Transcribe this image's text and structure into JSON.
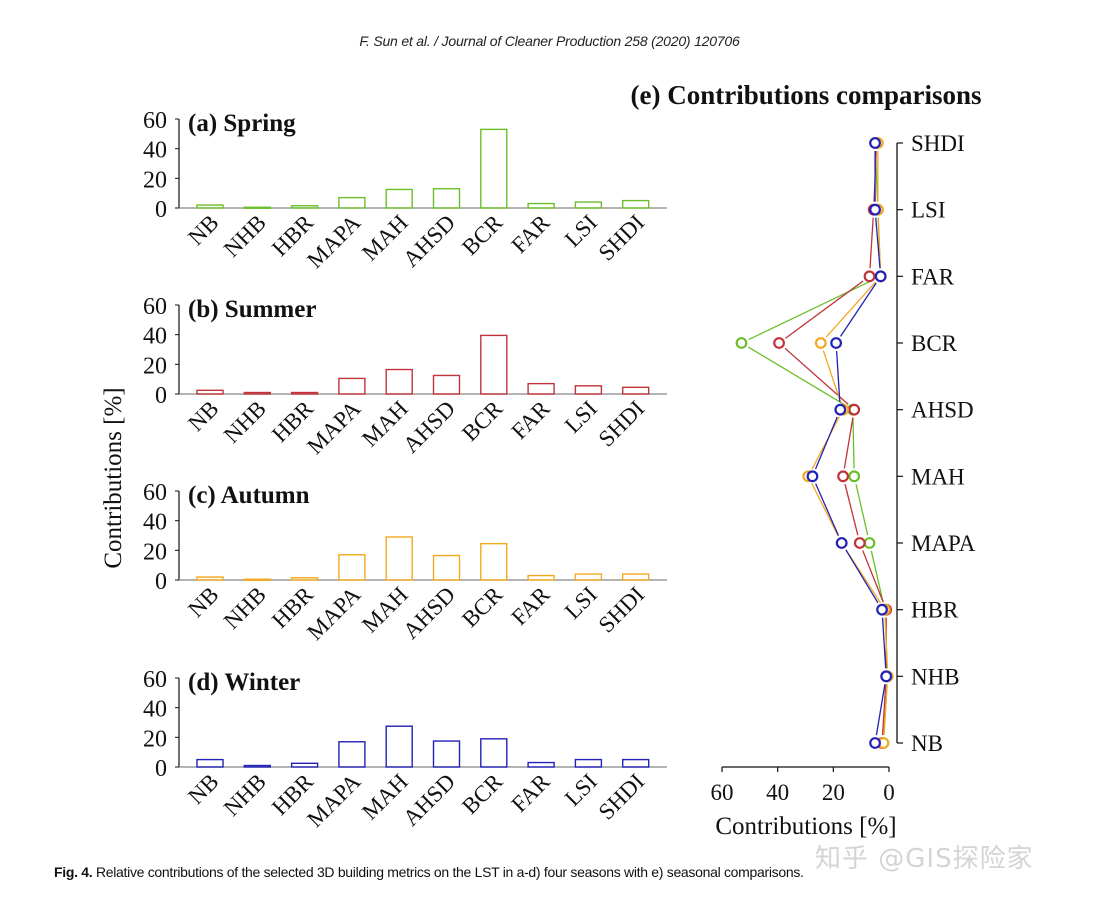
{
  "header": {
    "running_title": "F. Sun et al. / Journal of Cleaner Production 258 (2020) 120706"
  },
  "caption": {
    "label": "Fig. 4.",
    "text": " Relative contributions of the selected 3D building metrics on the LST in a-d) four seasons with e) seasonal comparisons."
  },
  "watermark": "知乎 @GIS探险家",
  "shared_ylabel": "Contributions [%]",
  "chart_data": [
    {
      "type": "bar",
      "panel": "a",
      "title": "(a) Spring",
      "color": "#6bbf2a",
      "categories": [
        "NB",
        "NHB",
        "HBR",
        "MAPA",
        "MAH",
        "AHSD",
        "BCR",
        "FAR",
        "LSI",
        "SHDI"
      ],
      "values": [
        2,
        0.5,
        1.5,
        7,
        12.5,
        13,
        53,
        3,
        4,
        5
      ],
      "ylim": [
        0,
        60
      ],
      "yticks": [
        0,
        20,
        40,
        60
      ],
      "xlabel": "",
      "ylabel": "Contributions [%]"
    },
    {
      "type": "bar",
      "panel": "b",
      "title": "(b) Summer",
      "color": "#c0333a",
      "categories": [
        "NB",
        "NHB",
        "HBR",
        "MAPA",
        "MAH",
        "AHSD",
        "BCR",
        "FAR",
        "LSI",
        "SHDI"
      ],
      "values": [
        2.5,
        1,
        1,
        10.5,
        16.5,
        12.5,
        39.5,
        7,
        5.5,
        4.5
      ],
      "ylim": [
        0,
        60
      ],
      "yticks": [
        0,
        20,
        40,
        60
      ],
      "xlabel": "",
      "ylabel": "Contributions [%]"
    },
    {
      "type": "bar",
      "panel": "c",
      "title": "(c) Autumn",
      "color": "#f2a81f",
      "categories": [
        "NB",
        "NHB",
        "HBR",
        "MAPA",
        "MAH",
        "AHSD",
        "BCR",
        "FAR",
        "LSI",
        "SHDI"
      ],
      "values": [
        2,
        0.5,
        1.5,
        17,
        29,
        16.5,
        24.5,
        3,
        4,
        4
      ],
      "ylim": [
        0,
        60
      ],
      "yticks": [
        0,
        20,
        40,
        60
      ],
      "xlabel": "",
      "ylabel": "Contributions [%]"
    },
    {
      "type": "bar",
      "panel": "d",
      "title": "(d) Winter",
      "color": "#2222b8",
      "categories": [
        "NB",
        "NHB",
        "HBR",
        "MAPA",
        "MAH",
        "AHSD",
        "BCR",
        "FAR",
        "LSI",
        "SHDI"
      ],
      "values": [
        5,
        1,
        2.5,
        17,
        27.5,
        17.5,
        19,
        3,
        5,
        5
      ],
      "ylim": [
        0,
        60
      ],
      "yticks": [
        0,
        20,
        40,
        60
      ],
      "xlabel": "",
      "ylabel": "Contributions [%]"
    },
    {
      "type": "line",
      "panel": "e",
      "title": "(e) Contributions comparisons",
      "orientation": "horizontal-values, categories on right vertical axis",
      "categories": [
        "NB",
        "NHB",
        "HBR",
        "MAPA",
        "MAH",
        "AHSD",
        "BCR",
        "FAR",
        "LSI",
        "SHDI"
      ],
      "xlabel": "Contributions [%]",
      "xlim": [
        60,
        0
      ],
      "xticks": [
        60,
        40,
        20,
        0
      ],
      "x_reversed": true,
      "marker": "open-circle",
      "series": [
        {
          "name": "Spring",
          "color": "#6bbf2a",
          "values": [
            2,
            0.5,
            1.5,
            7,
            12.5,
            13,
            53,
            3,
            4,
            5
          ]
        },
        {
          "name": "Summer",
          "color": "#c0333a",
          "values": [
            2.5,
            1,
            1,
            10.5,
            16.5,
            12.5,
            39.5,
            7,
            5.5,
            4.5
          ]
        },
        {
          "name": "Autumn",
          "color": "#f2a81f",
          "values": [
            2,
            0.5,
            1.5,
            17,
            29,
            16.5,
            24.5,
            3,
            4,
            4
          ]
        },
        {
          "name": "Winter",
          "color": "#2222b8",
          "values": [
            5,
            1,
            2.5,
            17,
            27.5,
            17.5,
            19,
            3,
            5,
            5
          ]
        }
      ]
    }
  ]
}
